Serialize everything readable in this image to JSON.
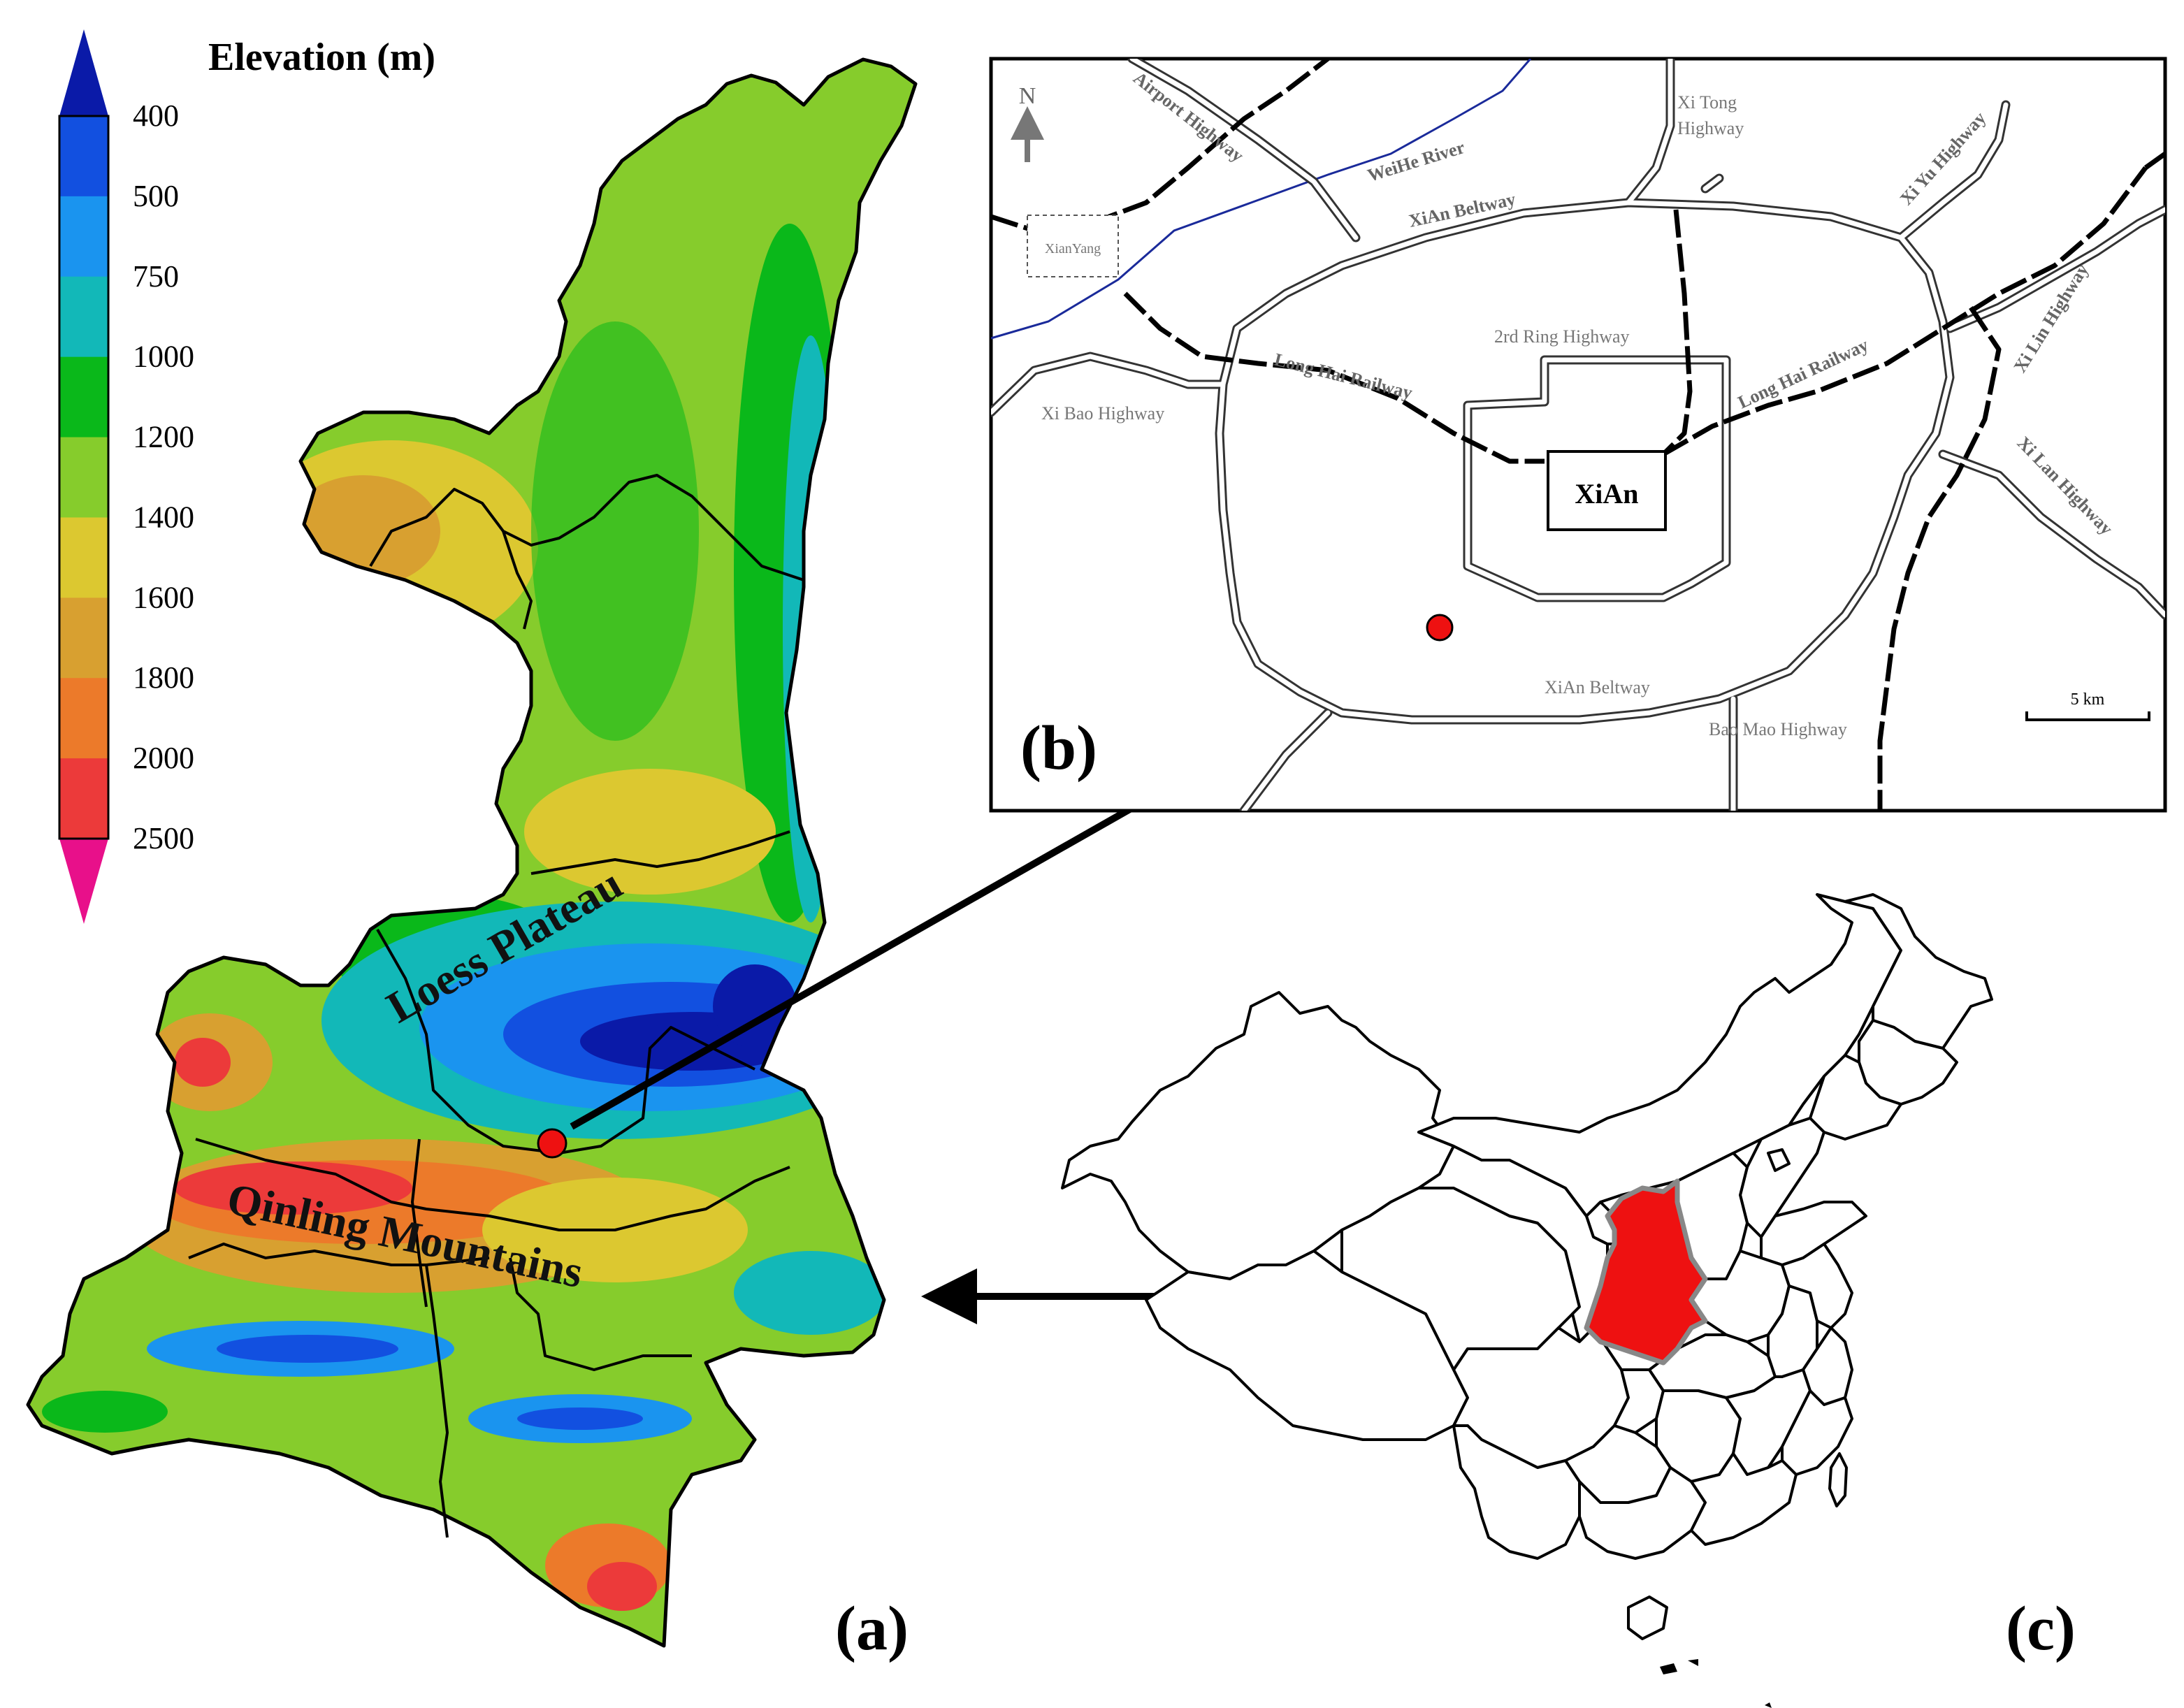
{
  "colorbar": {
    "title": "Elevation (m)",
    "levels": [
      "400",
      "500",
      "750",
      "1000",
      "1200",
      "1400",
      "1600",
      "1800",
      "2000",
      "2500"
    ],
    "colors": [
      "#0a1aa8",
      "#1250e0",
      "#1a94ef",
      "#12b8b8",
      "#0ab81a",
      "#86cc2c",
      "#dcc830",
      "#d8a030",
      "#ec7a2a",
      "#ec3a3a",
      "#e8108a"
    ]
  },
  "panel_a": {
    "label": "(a)",
    "regions": [
      "Loess Plateau",
      "Qinling Mountains"
    ],
    "site_color": "#ee1111"
  },
  "panel_b": {
    "label": "(b)",
    "north": "N",
    "city": "XiAn",
    "xianyang": "XianYang",
    "scale": "5 km",
    "roads": {
      "airport": "Airport Highway",
      "weihe": "WeiHe River",
      "xitong_1": "Xi Tong",
      "xitong_2": "Highway",
      "beltway_n": "XiAn Beltway",
      "beltway_s": "XiAn Beltway",
      "xiyu": "Xi Yu Highway",
      "ring2": "2rd Ring Highway",
      "longhai_w": "Long Hai Railway",
      "longhai_e": "Long Hai Railway",
      "xilin": "Xi Lin Highway",
      "xibao": "Xi Bao Highway",
      "xilan": "Xi Lan Highway",
      "baomao": "Bao Mao Highway"
    }
  },
  "panel_c": {
    "label": "(c)",
    "highlight_color": "#ee1111"
  }
}
